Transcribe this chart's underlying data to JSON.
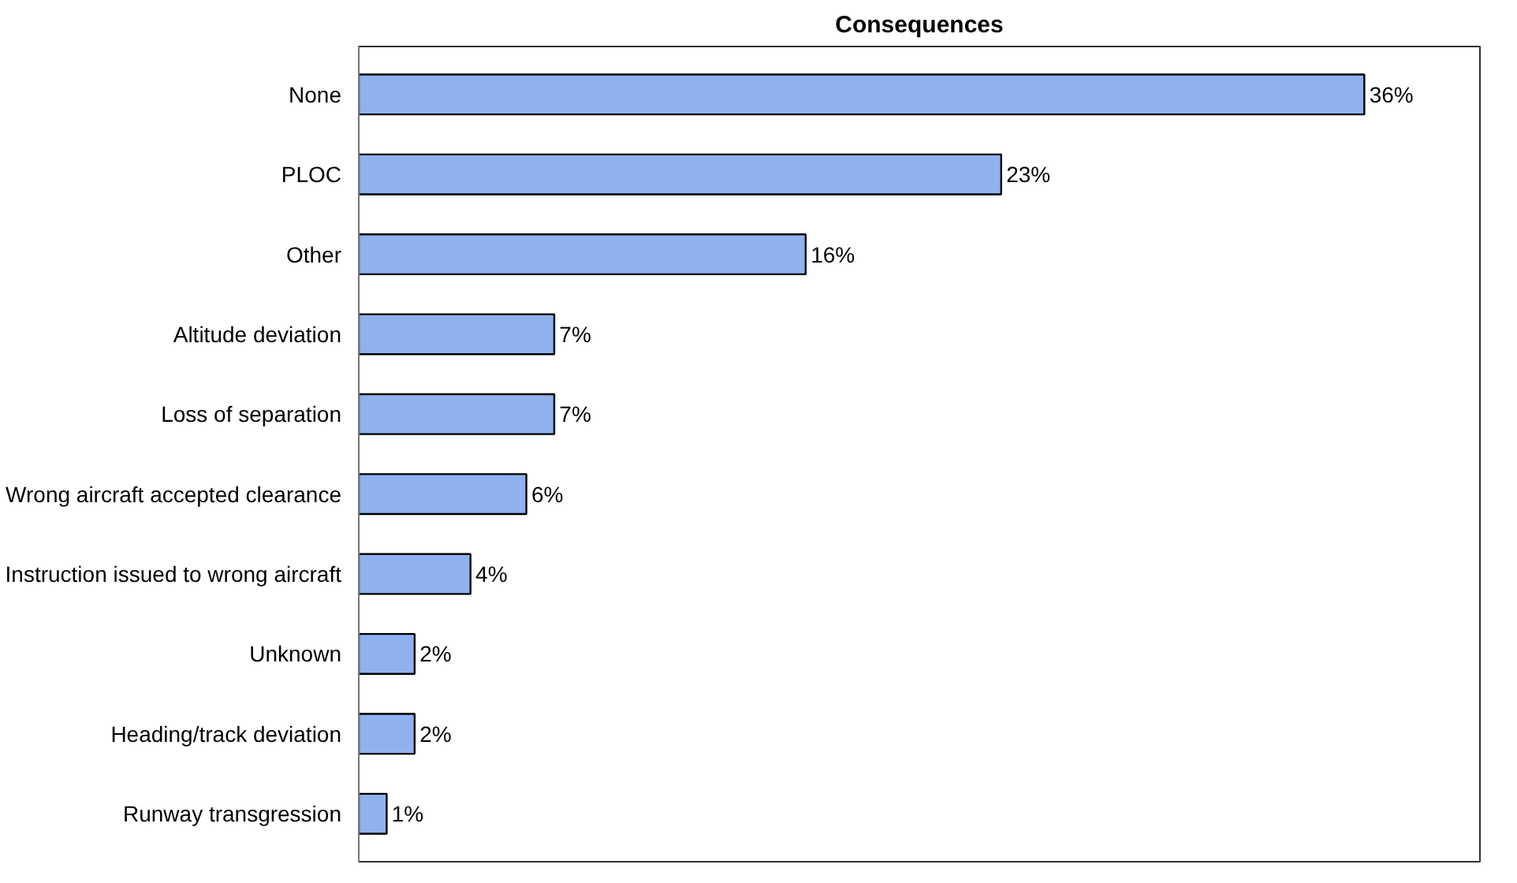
{
  "chart_data": {
    "type": "bar",
    "orientation": "horizontal",
    "title": "Consequences",
    "categories": [
      "None",
      "PLOC",
      "Other",
      "Altitude deviation",
      "Loss of separation",
      "Wrong aircraft accepted clearance",
      "Instruction issued to wrong aircraft",
      "Unknown",
      "Heading/track deviation",
      "Runway transgression"
    ],
    "values": [
      36,
      23,
      16,
      7,
      7,
      6,
      4,
      2,
      2,
      1
    ],
    "value_labels": [
      "36%",
      "23%",
      "16%",
      "7%",
      "7%",
      "6%",
      "4%",
      "2%",
      "2%",
      "1%"
    ],
    "color": "#8fb2ef",
    "grid": false
  }
}
